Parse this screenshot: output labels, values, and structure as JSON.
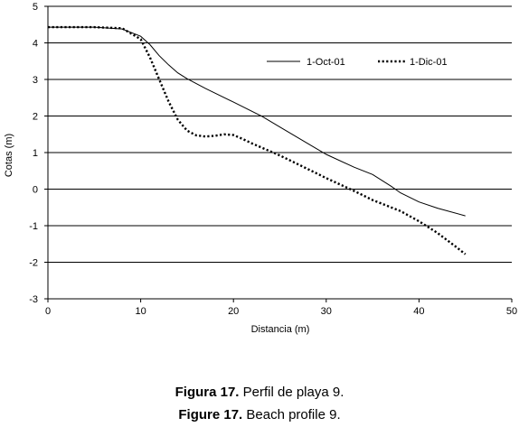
{
  "chart_data": {
    "type": "line",
    "title": "",
    "xlabel": "Distancia (m)",
    "ylabel": "Cotas (m)",
    "xlim": [
      0,
      50
    ],
    "ylim": [
      -3,
      5
    ],
    "x_ticks": [
      "0",
      "10",
      "20",
      "30",
      "40",
      "50"
    ],
    "y_ticks": [
      "5",
      "4",
      "3",
      "2",
      "1",
      "0",
      "-1",
      "-2",
      "-3"
    ],
    "grid": "horizontal",
    "legend_position": "top-right",
    "series": [
      {
        "name": "1-Oct-01",
        "style": "solid",
        "x": [
          0,
          5,
          8,
          10,
          11,
          12,
          13,
          14,
          15,
          17,
          20,
          23,
          25,
          28,
          30,
          33,
          35,
          37,
          38,
          40,
          42,
          45
        ],
        "y": [
          4.43,
          4.43,
          4.38,
          4.18,
          3.95,
          3.65,
          3.4,
          3.18,
          3.02,
          2.75,
          2.38,
          2.0,
          1.7,
          1.25,
          0.95,
          0.6,
          0.4,
          0.08,
          -0.1,
          -0.35,
          -0.52,
          -0.73
        ]
      },
      {
        "name": "1-Dic-01",
        "style": "dotted",
        "x": [
          0,
          5,
          8,
          10,
          11,
          12,
          13,
          14,
          15,
          16,
          17,
          18,
          19,
          20,
          21,
          22,
          25,
          28,
          30,
          33,
          35,
          38,
          40,
          42,
          44,
          45
        ],
        "y": [
          4.43,
          4.43,
          4.4,
          4.1,
          3.6,
          3.0,
          2.4,
          1.9,
          1.6,
          1.47,
          1.44,
          1.46,
          1.5,
          1.48,
          1.37,
          1.25,
          0.92,
          0.55,
          0.3,
          -0.05,
          -0.3,
          -0.6,
          -0.88,
          -1.2,
          -1.58,
          -1.78
        ]
      }
    ]
  },
  "captions": {
    "es_label": "Figura 17.",
    "es_text": " Perfil de playa 9.",
    "en_label": "Figure 17.",
    "en_text": " Beach profile 9."
  }
}
